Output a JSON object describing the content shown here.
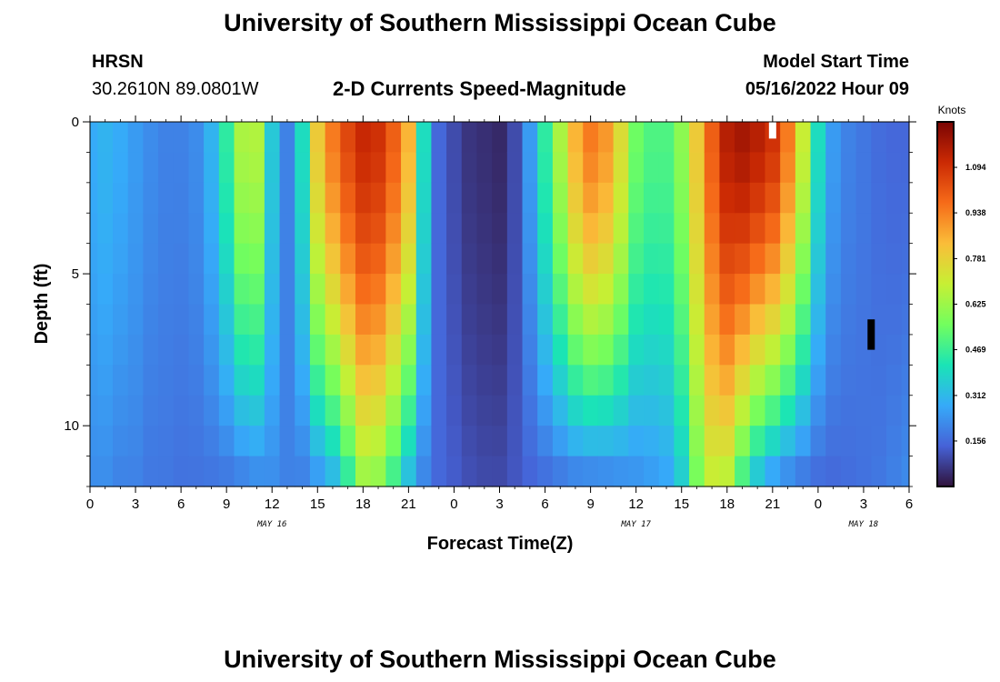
{
  "header": {
    "title": "University of Southern Mississippi Ocean Cube",
    "station": "HRSN",
    "coordinates": "30.2610N  89.0801W",
    "subtitle": "2-D Currents Speed-Magnitude",
    "model_start_label": "Model Start Time",
    "model_start_value": "05/16/2022 Hour 09"
  },
  "footer": {
    "title_repeat": "University of Southern Mississippi Ocean Cube"
  },
  "chart_data": {
    "type": "heatmap",
    "xlabel": "Forecast Time(Z)",
    "ylabel": "Depth (ft)",
    "x_range_hours": [
      0,
      54
    ],
    "y_range": [
      0,
      12
    ],
    "x_tick_labels": [
      "0",
      "3",
      "6",
      "9",
      "12",
      "15",
      "18",
      "21",
      "0",
      "3",
      "6",
      "9",
      "12",
      "15",
      "18",
      "21",
      "0",
      "3",
      "6"
    ],
    "day_labels": [
      "MAY 16",
      "MAY 17",
      "MAY 18"
    ],
    "y_ticks": [
      0,
      5,
      10
    ],
    "colorbar": {
      "title": "Knots",
      "min": 0,
      "max": 1.25,
      "tick_values": [
        1.094,
        0.938,
        0.781,
        0.625,
        0.469,
        0.312,
        0.156
      ],
      "tick_labels": [
        "1.094",
        "0.938",
        "0.781",
        "0.625",
        "0.469",
        "0.312",
        "0.156"
      ],
      "colors": [
        "#30123b",
        "#4662d7",
        "#36aaf9",
        "#1ae4b6",
        "#72fe5e",
        "#c7ef34",
        "#fabd39",
        "#f66b19",
        "#cb2a04",
        "#7a0403"
      ]
    },
    "surface_profile_knots": [
      0.28,
      0.3,
      0.28,
      0.25,
      0.22,
      0.2,
      0.2,
      0.22,
      0.3,
      0.45,
      0.65,
      0.66,
      0.35,
      0.2,
      0.4,
      0.8,
      0.95,
      1.05,
      1.12,
      1.1,
      1.0,
      0.85,
      0.4,
      0.15,
      0.1,
      0.06,
      0.05,
      0.04,
      0.1,
      0.25,
      0.45,
      0.65,
      0.85,
      0.95,
      0.9,
      0.75,
      0.55,
      0.5,
      0.5,
      0.6,
      0.8,
      1.0,
      1.15,
      1.18,
      1.15,
      1.1,
      0.95,
      0.7,
      0.4,
      0.25,
      0.2,
      0.18,
      0.16,
      0.15,
      0.15
    ],
    "bottom_profile_knots": [
      0.22,
      0.22,
      0.2,
      0.2,
      0.18,
      0.18,
      0.17,
      0.17,
      0.17,
      0.17,
      0.18,
      0.2,
      0.22,
      0.2,
      0.19,
      0.22,
      0.28,
      0.42,
      0.6,
      0.58,
      0.45,
      0.3,
      0.2,
      0.15,
      0.13,
      0.11,
      0.1,
      0.1,
      0.12,
      0.14,
      0.15,
      0.16,
      0.17,
      0.17,
      0.18,
      0.2,
      0.22,
      0.24,
      0.26,
      0.35,
      0.55,
      0.68,
      0.65,
      0.45,
      0.3,
      0.22,
      0.18,
      0.16,
      0.15,
      0.15,
      0.16,
      0.17,
      0.18,
      0.2,
      0.22
    ],
    "missing_cells": [
      {
        "hour": 45,
        "depth_from": 0,
        "depth_to": 0.55,
        "color": "#ffffff"
      },
      {
        "hour": 51.5,
        "depth_from": 6.5,
        "depth_to": 7.5,
        "color": "#000000"
      }
    ]
  }
}
